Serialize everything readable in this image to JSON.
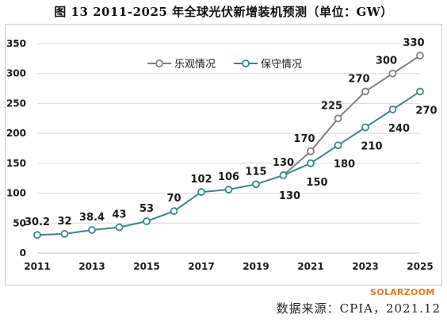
{
  "page": {
    "title": "图 13 2011-2025 年全球光伏新增装机预测（单位：GW）",
    "brand": "SOLARZOOM",
    "source": "数据来源：CPIA，2021.12"
  },
  "colors": {
    "optimistic": "#7f7f7f",
    "conservative": "#3b8686",
    "gridline": "#d9d9d9",
    "axis": "#bfbfbf"
  },
  "chart_data": {
    "type": "line",
    "title": "",
    "xlabel": "",
    "ylabel": "",
    "x": [
      2011,
      2012,
      2013,
      2014,
      2015,
      2016,
      2017,
      2018,
      2019,
      2020,
      2021,
      2022,
      2023,
      2024,
      2025
    ],
    "x_tick_labels": [
      "2011",
      "2013",
      "2015",
      "2017",
      "2019",
      "2021",
      "2023",
      "2025"
    ],
    "y_ticks": [
      0,
      50,
      100,
      150,
      200,
      250,
      300,
      350
    ],
    "ylim": [
      0,
      350
    ],
    "grid": "horizontal",
    "legend_position": "top-center",
    "history": {
      "values": [
        30.2,
        32,
        38.4,
        43,
        53,
        70,
        102,
        106,
        115,
        130
      ],
      "labels": [
        "30.2",
        "32",
        "38.4",
        "43",
        "53",
        "70",
        "102",
        "106",
        "115",
        "130"
      ]
    },
    "series": [
      {
        "name": "乐观情况",
        "x": [
          2020,
          2021,
          2022,
          2023,
          2024,
          2025
        ],
        "values": [
          130,
          170,
          225,
          270,
          300,
          330
        ],
        "labels": [
          "130",
          "170",
          "225",
          "270",
          "300",
          "330"
        ]
      },
      {
        "name": "保守情况",
        "x": [
          2020,
          2021,
          2022,
          2023,
          2024,
          2025
        ],
        "values": [
          130,
          150,
          180,
          210,
          240,
          270
        ],
        "labels": [
          "130",
          "150",
          "180",
          "210",
          "240",
          "270"
        ]
      }
    ]
  }
}
